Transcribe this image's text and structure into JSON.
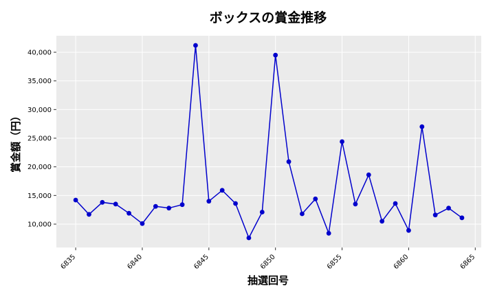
{
  "chart_data": {
    "type": "line",
    "title": "ボックスの賞金推移",
    "xlabel": "抽選回号",
    "ylabel": "賞金額（円）",
    "x": [
      6835,
      6836,
      6837,
      6838,
      6839,
      6840,
      6841,
      6842,
      6843,
      6844,
      6845,
      6846,
      6847,
      6848,
      6849,
      6850,
      6851,
      6852,
      6853,
      6854,
      6855,
      6856,
      6857,
      6858,
      6859,
      6860,
      6861,
      6862,
      6863,
      6864
    ],
    "series": [
      {
        "values": [
          14200,
          11700,
          13800,
          13500,
          11900,
          10100,
          13100,
          12800,
          13400,
          41200,
          14000,
          15900,
          13600,
          7600,
          12100,
          39500,
          20900,
          11800,
          14400,
          8400,
          24400,
          13500,
          18600,
          10500,
          13600,
          8900,
          27000,
          11600,
          12800,
          11100
        ],
        "color": "#0000cc"
      }
    ],
    "xlim": [
      6833.55,
      6865.45
    ],
    "ylim": [
      5920,
      42880
    ],
    "xticks": [
      "6835",
      "6840",
      "6845",
      "6850",
      "6855",
      "6860",
      "6865"
    ],
    "yticks": [
      "10,000",
      "15,000",
      "20,000",
      "25,000",
      "30,000",
      "35,000",
      "40,000"
    ],
    "grid": true,
    "background": "#ebebeb"
  }
}
